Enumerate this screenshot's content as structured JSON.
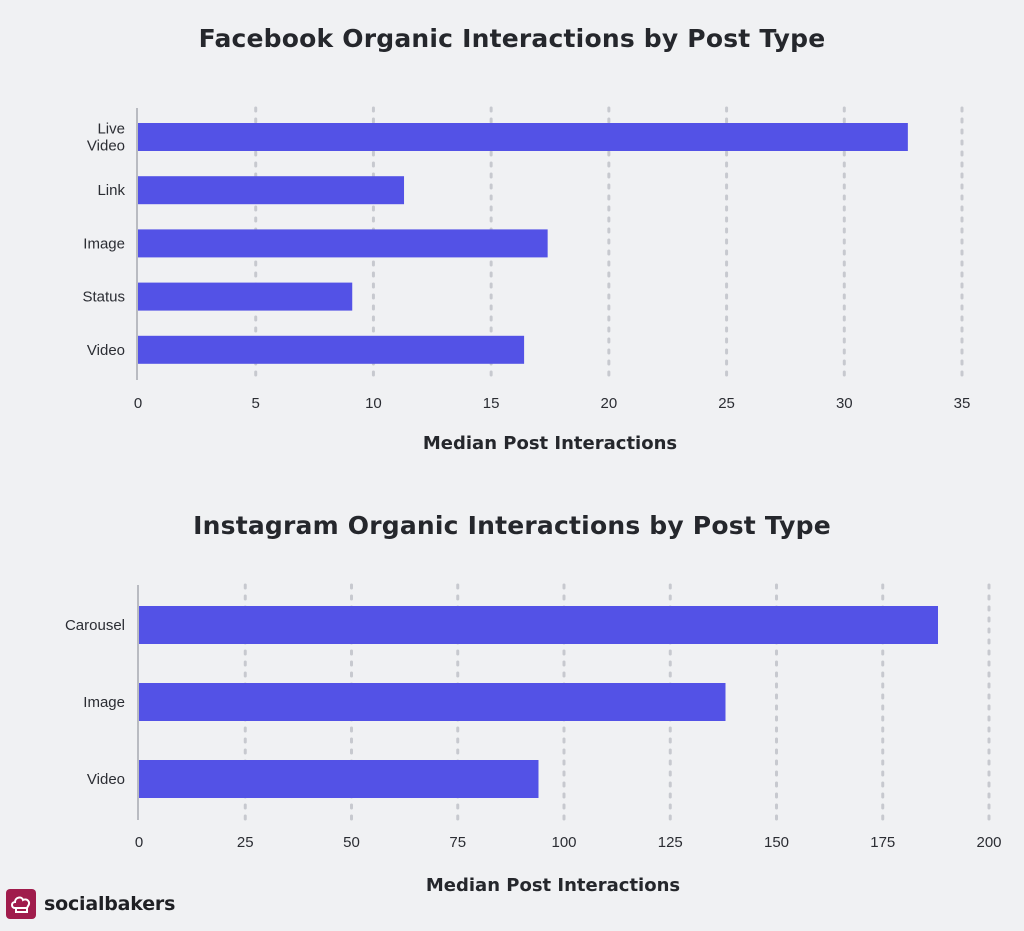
{
  "chart_data": [
    {
      "type": "bar",
      "orientation": "horizontal",
      "title": "Facebook Organic Interactions by Post Type",
      "xlabel": "Median Post Interactions",
      "ylabel": "",
      "categories": [
        "Live Video",
        "Link",
        "Image",
        "Status",
        "Video"
      ],
      "values": [
        32.7,
        11.3,
        17.4,
        9.1,
        16.4
      ],
      "xlim": [
        0,
        35
      ],
      "ticks": [
        0,
        5,
        10,
        15,
        20,
        25,
        30,
        35
      ],
      "grid": true,
      "bar_color": "#5352e6"
    },
    {
      "type": "bar",
      "orientation": "horizontal",
      "title": "Instagram Organic Interactions by Post Type",
      "xlabel": "Median Post Interactions",
      "ylabel": "",
      "categories": [
        "Carousel",
        "Image",
        "Video"
      ],
      "values": [
        188,
        138,
        94
      ],
      "xlim": [
        0,
        200
      ],
      "ticks": [
        0,
        25,
        50,
        75,
        100,
        125,
        150,
        175,
        200
      ],
      "grid": true,
      "bar_color": "#5352e6"
    }
  ],
  "brand": {
    "name": "socialbakers",
    "logo_icon": "chef-hat-icon",
    "logo_color": "#a01c4c"
  }
}
